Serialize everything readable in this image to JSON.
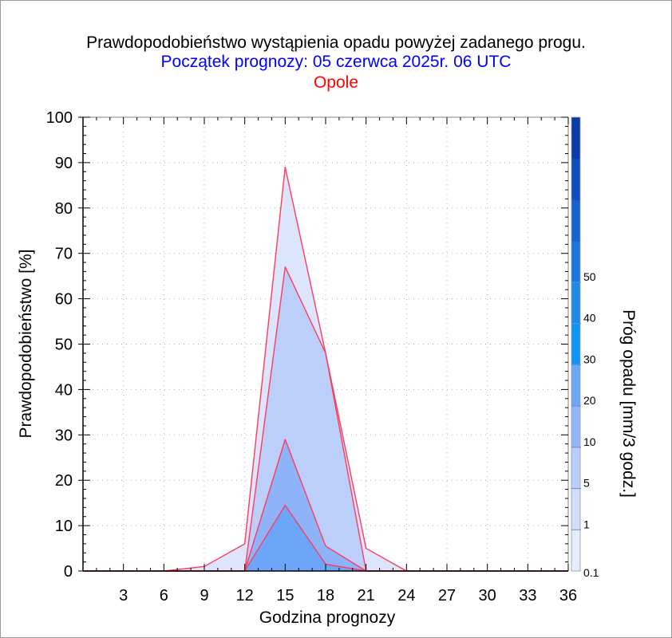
{
  "title": "Prawdopodobieństwo wystąpienia opadu powyżej zadanego progu.",
  "subtitle": "Początek prognozy: 05 czerwca 2025r. 06 UTC",
  "location": "Opole",
  "colors": {
    "title": "#000000",
    "subtitle": "#0000ff",
    "location": "#ff0000",
    "series_line": "#ff3b5c"
  },
  "chart_data": {
    "type": "area",
    "xlabel": "Godzina prognozy",
    "ylabel": "Prawdopodobieństwo [%]",
    "xlim": [
      0,
      36
    ],
    "ylim": [
      0,
      100
    ],
    "x_ticks": [
      3,
      6,
      9,
      12,
      15,
      18,
      21,
      24,
      27,
      30,
      33,
      36
    ],
    "y_ticks": [
      0,
      10,
      20,
      30,
      40,
      50,
      60,
      70,
      80,
      90,
      100
    ],
    "x": [
      0,
      3,
      6,
      9,
      12,
      15,
      18,
      21,
      24,
      27,
      30,
      33,
      36
    ],
    "series": [
      {
        "name": "0.1",
        "color": "#dde5fc",
        "values": [
          0,
          0,
          0,
          1,
          6,
          89,
          48,
          5,
          0,
          0,
          0,
          0,
          0
        ]
      },
      {
        "name": "1",
        "color": "#bccefa",
        "values": [
          0,
          0,
          0,
          0,
          0,
          67,
          48,
          0,
          0,
          0,
          0,
          0,
          0
        ]
      },
      {
        "name": "5",
        "color": "#8eb3f8",
        "values": [
          0,
          0,
          0,
          0,
          0,
          29,
          5.5,
          0,
          0,
          0,
          0,
          0,
          0
        ]
      },
      {
        "name": "10",
        "color": "#6da6f8",
        "values": [
          0,
          0,
          0,
          0,
          0,
          14.5,
          1.5,
          0,
          0,
          0,
          0,
          0,
          0
        ]
      }
    ],
    "colorbar": {
      "label": "Próg opadu [mm/3 godz.]",
      "tick_labels": [
        "0.1",
        "1",
        "5",
        "10",
        "20",
        "30",
        "40",
        "50"
      ],
      "colors": [
        "#e5ecfd",
        "#d0ddfb",
        "#b9cdfa",
        "#92b6f8",
        "#6ba6f7",
        "#0d96f8",
        "#1e8ae8",
        "#1a77de",
        "#1463cf",
        "#0f4fbd",
        "#0a3ca8"
      ]
    }
  }
}
